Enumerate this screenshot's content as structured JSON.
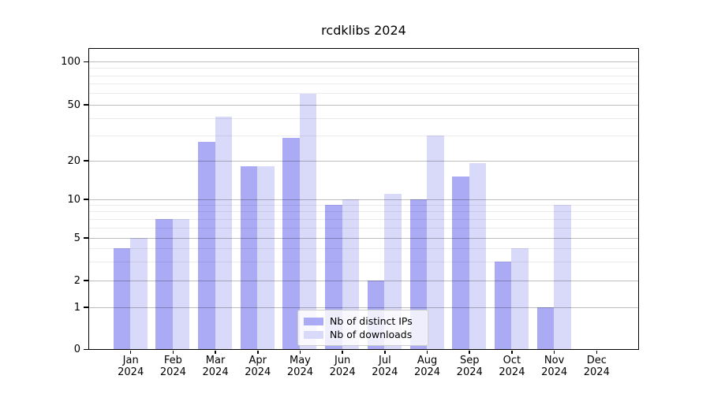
{
  "chart_data": {
    "type": "bar",
    "title": "rcdklibs 2024",
    "categories": [
      "Jan",
      "Feb",
      "Mar",
      "Apr",
      "May",
      "Jun",
      "Jul",
      "Aug",
      "Sep",
      "Oct",
      "Nov",
      "Dec"
    ],
    "category_year": "2024",
    "series": [
      {
        "name": "Nb of distinct IPs",
        "color": "#aaaaf5",
        "values": [
          4,
          7,
          27,
          18,
          29,
          9,
          2,
          10,
          15,
          3,
          1,
          0
        ]
      },
      {
        "name": "Nb of downloads",
        "color": "#d9d9fa",
        "values": [
          5,
          7,
          41,
          18,
          59,
          10,
          11,
          30,
          19,
          4,
          9,
          0
        ]
      }
    ],
    "xlabel": "",
    "ylabel": "",
    "y_axis": {
      "scale": "log-like",
      "tick_values": [
        0,
        1,
        2,
        5,
        10,
        20,
        50,
        100
      ],
      "tick_labels": [
        "0",
        "1",
        "2",
        "5",
        "10",
        "20",
        "50",
        "100"
      ],
      "minor_gridline_values": [
        3,
        4,
        6,
        7,
        8,
        9,
        30,
        40,
        60,
        70,
        80,
        90
      ]
    },
    "legend": {
      "position": "inside-bottom-center",
      "entries": [
        "Nb of distinct IPs",
        "Nb of downloads"
      ]
    },
    "grid": true
  },
  "colors": {
    "bar_distinct_ips": "#aaaaf5",
    "bar_downloads": "#d9d9fa",
    "major_gridline": "#bdbdbd",
    "minor_gridline": "#ebebeb",
    "axis": "#000000",
    "background": "#ffffff"
  }
}
